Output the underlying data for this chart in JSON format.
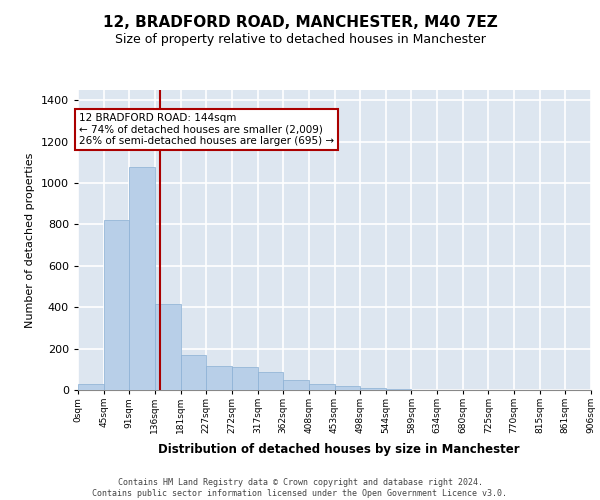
{
  "title": "12, BRADFORD ROAD, MANCHESTER, M40 7EZ",
  "subtitle": "Size of property relative to detached houses in Manchester",
  "xlabel": "Distribution of detached houses by size in Manchester",
  "ylabel": "Number of detached properties",
  "footer_line1": "Contains HM Land Registry data © Crown copyright and database right 2024.",
  "footer_line2": "Contains public sector information licensed under the Open Government Licence v3.0.",
  "property_label": "12 BRADFORD ROAD: 144sqm",
  "annotation_line2": "← 74% of detached houses are smaller (2,009)",
  "annotation_line3": "26% of semi-detached houses are larger (695) →",
  "vline_x": 144,
  "bin_width": 45,
  "bar_values": [
    28,
    820,
    1080,
    415,
    170,
    115,
    110,
    85,
    50,
    28,
    18,
    12,
    4,
    1,
    0,
    0,
    0,
    0,
    0,
    0
  ],
  "bar_labels": [
    "0sqm",
    "45sqm",
    "91sqm",
    "136sqm",
    "181sqm",
    "227sqm",
    "272sqm",
    "317sqm",
    "362sqm",
    "408sqm",
    "453sqm",
    "498sqm",
    "544sqm",
    "589sqm",
    "634sqm",
    "680sqm",
    "725sqm",
    "770sqm",
    "815sqm",
    "861sqm"
  ],
  "extra_label": "906sqm",
  "bar_color": "#b8cfe8",
  "bar_edge_color": "#8aafd4",
  "vline_color": "#aa0000",
  "background_color": "#dde6f0",
  "grid_color": "#ffffff",
  "annotation_box_color": "#ffffff",
  "annotation_box_edge": "#aa0000",
  "ylim": [
    0,
    1450
  ],
  "yticks": [
    0,
    200,
    400,
    600,
    800,
    1000,
    1200,
    1400
  ],
  "title_fontsize": 11,
  "subtitle_fontsize": 9
}
